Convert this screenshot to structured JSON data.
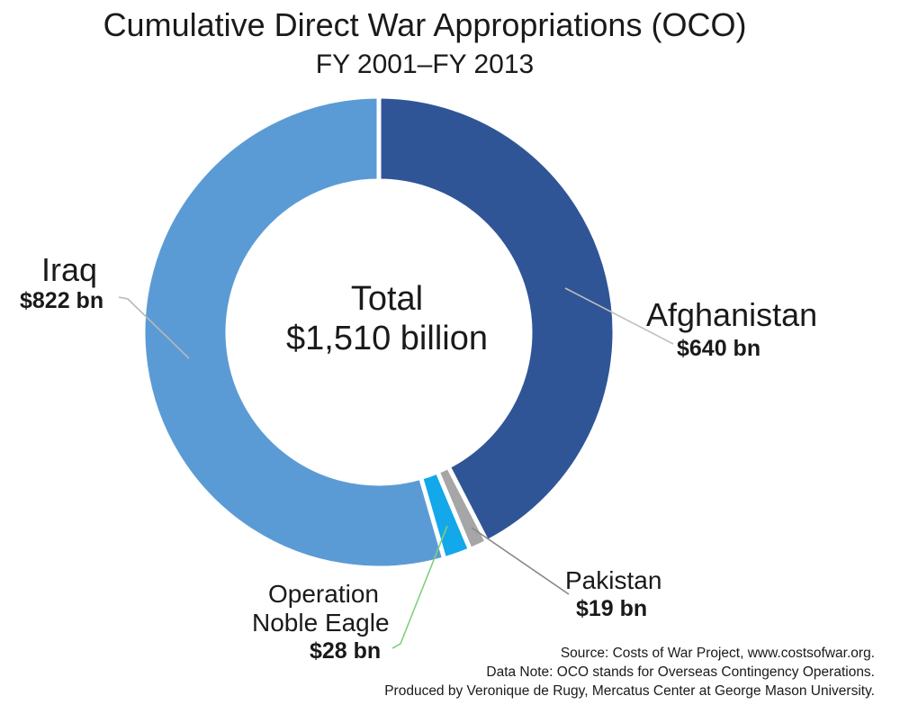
{
  "chart_data": {
    "type": "pie",
    "style": "donut",
    "title": "Cumulative Direct War Appropriations (OCO)",
    "subtitle": "FY 2001–FY 2013",
    "center_label": [
      "Total",
      "$1,510 billion"
    ],
    "unit": "billion USD",
    "slices": [
      {
        "name": "Afghanistan",
        "value": 640,
        "value_label": "$640 bn",
        "color": "#2f5597"
      },
      {
        "name": "Pakistan",
        "value": 19,
        "value_label": "$19 bn",
        "color": "#a6a6a6"
      },
      {
        "name": "Operation Noble Eagle",
        "name_lines": [
          "Operation",
          "Noble Eagle"
        ],
        "value": 28,
        "value_label": "$28 bn",
        "color": "#12a8ea"
      },
      {
        "name": "Iraq",
        "value": 822,
        "value_label": "$822 bn",
        "color": "#5b9bd5"
      }
    ],
    "start_angle_deg": 0,
    "direction": "clockwise"
  },
  "notes": {
    "source": "Source: Costs of War Project, www.costsofwar.org.",
    "data_note": "Data Note: OCO stands for Overseas Contingency Operations.",
    "produced_by": "Produced by Veronique de Rugy, Mercatus Center at George Mason University."
  }
}
